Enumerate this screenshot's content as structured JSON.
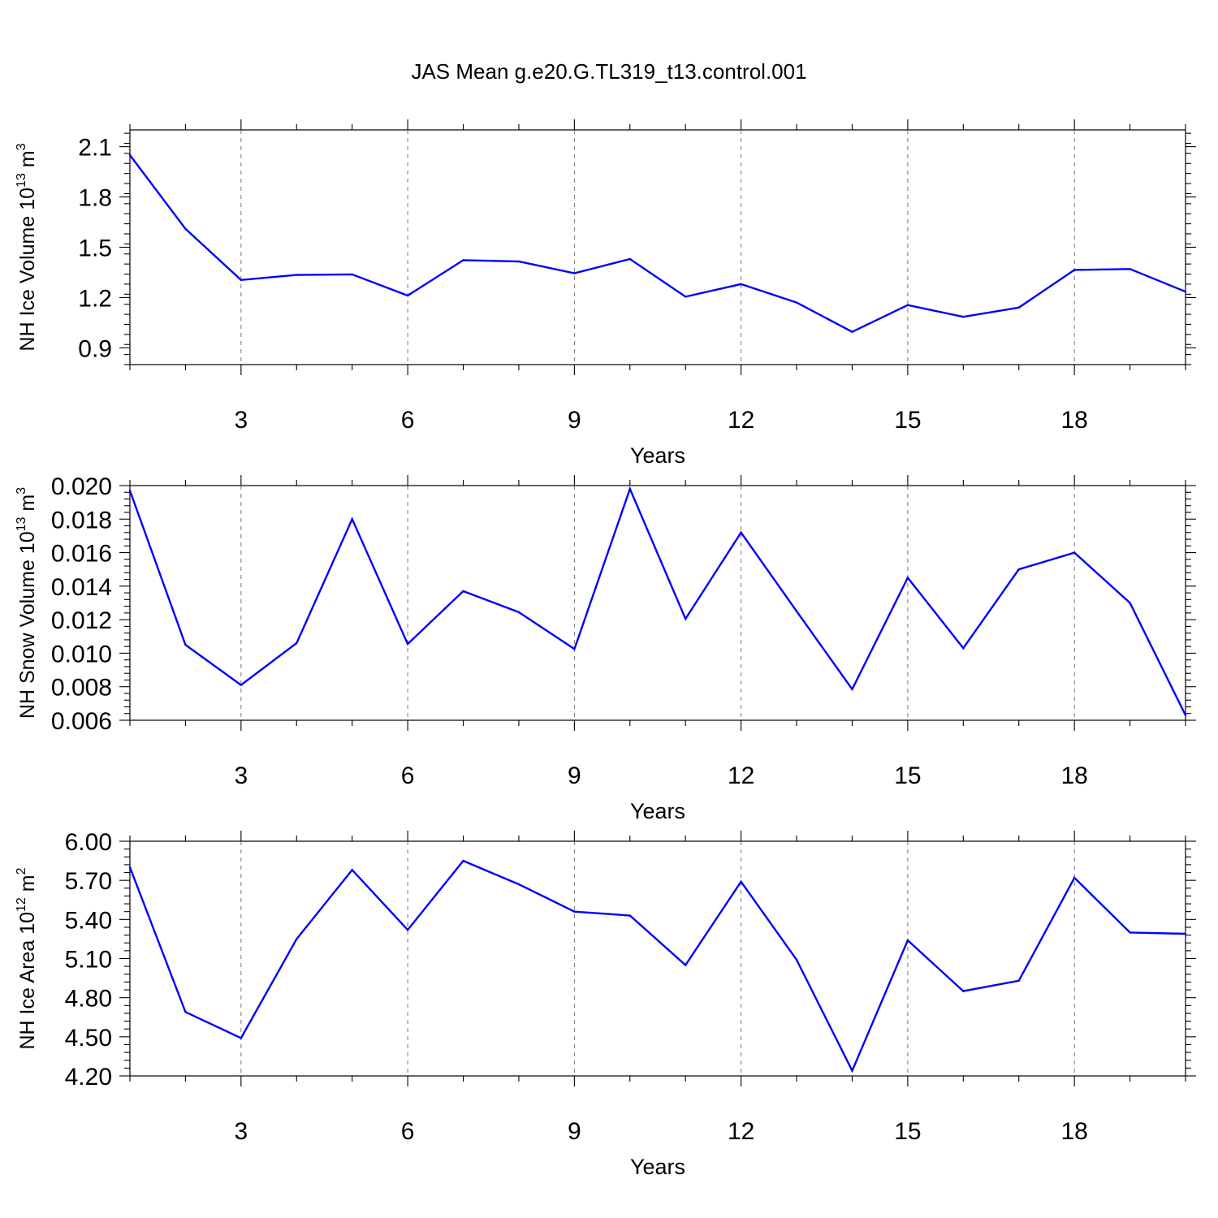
{
  "title": "JAS Mean g.e20.G.TL319_t13.control.001",
  "colors": {
    "line": "#0000ff",
    "axes": "#000000",
    "grid": "#777777"
  },
  "chart_data": [
    {
      "type": "line",
      "xlabel": "Years",
      "ylabel": {
        "prefix": "NH Ice Volume 10",
        "exp": "13",
        "unit": " m",
        "unit_exp": "3"
      },
      "x": [
        1,
        2,
        3,
        4,
        5,
        6,
        7,
        8,
        9,
        10,
        11,
        12,
        13,
        14,
        15,
        16,
        17,
        18,
        19,
        20
      ],
      "xticks": [
        3,
        6,
        9,
        12,
        15,
        18
      ],
      "xtick_labels": [
        "3",
        "6",
        "9",
        "12",
        "15",
        "18"
      ],
      "xlim": [
        1,
        20
      ],
      "ylim": [
        0.8,
        2.2
      ],
      "yticks": [
        0.9,
        1.2,
        1.5,
        1.8,
        2.1
      ],
      "ytick_labels": [
        "0.9",
        "1.2",
        "1.5",
        "1.8",
        "2.1"
      ],
      "yminor_step": 0.06,
      "grid": "vertical dashed at major x ticks",
      "series": [
        {
          "values": [
            2.05,
            1.61,
            1.305,
            1.335,
            1.338,
            1.212,
            1.423,
            1.415,
            1.345,
            1.43,
            1.205,
            1.28,
            1.17,
            0.995,
            1.155,
            1.085,
            1.14,
            1.365,
            1.37,
            1.235
          ]
        }
      ]
    },
    {
      "type": "line",
      "xlabel": "Years",
      "ylabel": {
        "prefix": "NH Snow Volume 10",
        "exp": "13",
        "unit": " m",
        "unit_exp": "3"
      },
      "x": [
        1,
        2,
        3,
        4,
        5,
        6,
        7,
        8,
        9,
        10,
        11,
        12,
        13,
        14,
        15,
        16,
        17,
        18,
        19,
        20
      ],
      "xticks": [
        3,
        6,
        9,
        12,
        15,
        18
      ],
      "xtick_labels": [
        "3",
        "6",
        "9",
        "12",
        "15",
        "18"
      ],
      "xlim": [
        1,
        20
      ],
      "ylim": [
        0.006,
        0.02
      ],
      "yticks": [
        0.006,
        0.008,
        0.01,
        0.012,
        0.014,
        0.016,
        0.018,
        0.02
      ],
      "ytick_labels": [
        "0.006",
        "0.008",
        "0.010",
        "0.012",
        "0.014",
        "0.016",
        "0.018",
        "0.020"
      ],
      "yminor_step": 0.0004,
      "grid": "vertical dashed at major x ticks",
      "series": [
        {
          "values": [
            0.0197,
            0.0105,
            0.0081,
            0.0106,
            0.018,
            0.01055,
            0.0137,
            0.01245,
            0.01025,
            0.0198,
            0.01205,
            0.0172,
            0.0125,
            0.00785,
            0.0145,
            0.0103,
            0.015,
            0.016,
            0.013,
            0.0063
          ]
        }
      ]
    },
    {
      "type": "line",
      "xlabel": "Years",
      "ylabel": {
        "prefix": "NH Ice Area 10",
        "exp": "12",
        "unit": " m",
        "unit_exp": "2"
      },
      "x": [
        1,
        2,
        3,
        4,
        5,
        6,
        7,
        8,
        9,
        10,
        11,
        12,
        13,
        14,
        15,
        16,
        17,
        18,
        19,
        20
      ],
      "xticks": [
        3,
        6,
        9,
        12,
        15,
        18
      ],
      "xtick_labels": [
        "3",
        "6",
        "9",
        "12",
        "15",
        "18"
      ],
      "xlim": [
        1,
        20
      ],
      "ylim": [
        4.2,
        6.0
      ],
      "yticks": [
        4.2,
        4.5,
        4.8,
        5.1,
        5.4,
        5.7,
        6.0
      ],
      "ytick_labels": [
        "4.20",
        "4.50",
        "4.80",
        "5.10",
        "5.40",
        "5.70",
        "6.00"
      ],
      "yminor_step": 0.06,
      "grid": "vertical dashed at major x ticks",
      "series": [
        {
          "values": [
            5.8,
            4.69,
            4.49,
            5.25,
            5.78,
            5.32,
            5.85,
            5.67,
            5.46,
            5.43,
            5.05,
            5.69,
            5.09,
            4.24,
            5.24,
            4.85,
            4.93,
            5.72,
            5.3,
            5.29
          ]
        }
      ]
    }
  ]
}
